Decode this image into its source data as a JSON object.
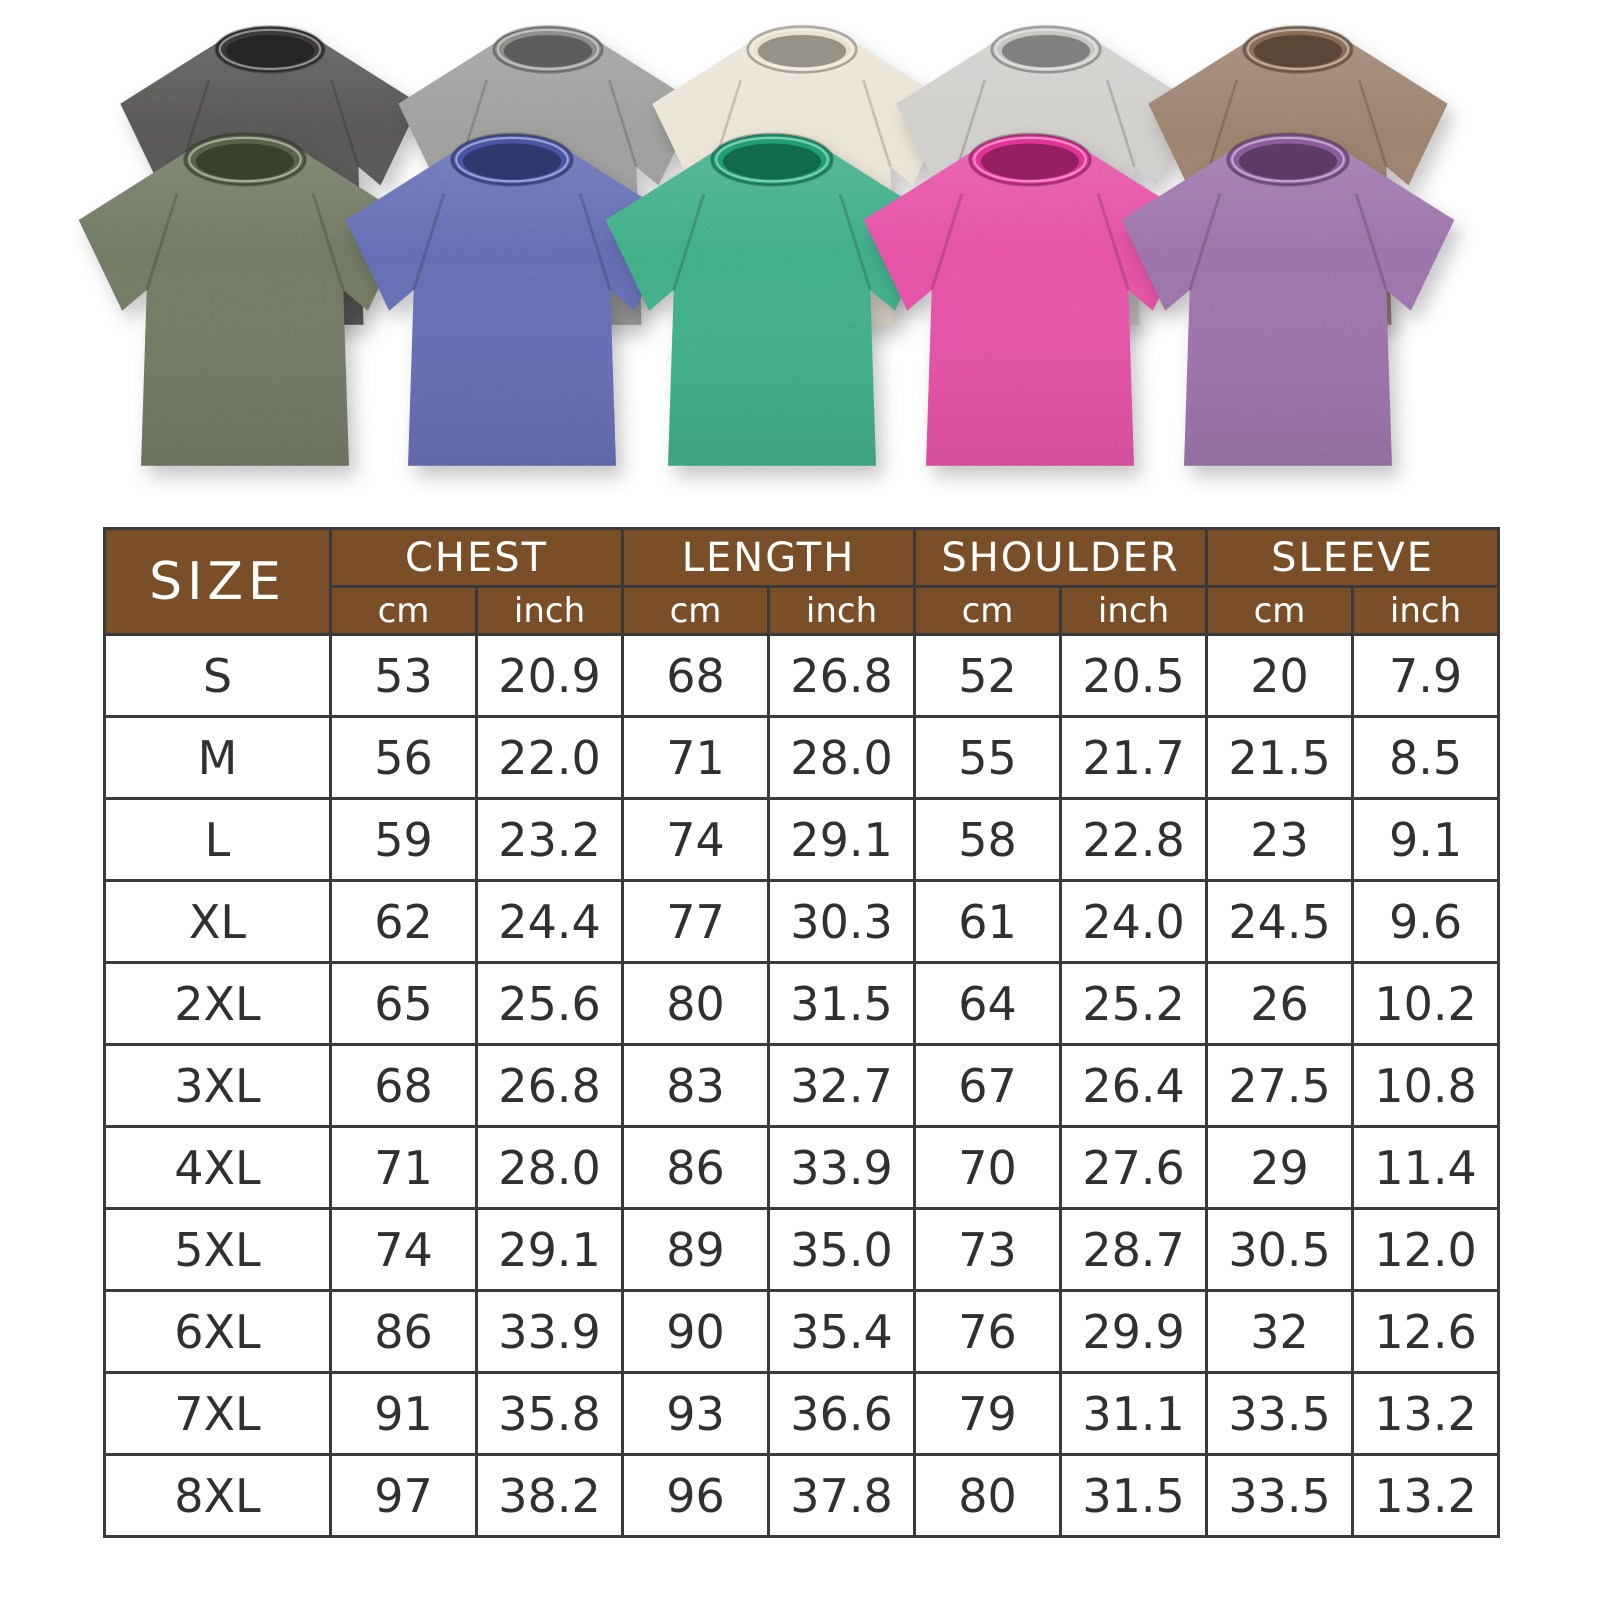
{
  "page": {
    "background": "#ffffff"
  },
  "gallery": {
    "back_row": [
      {
        "name": "washed-black",
        "hex": "#3b3a38"
      },
      {
        "name": "washed-gray",
        "hex": "#8f8f8d"
      },
      {
        "name": "washed-cream",
        "hex": "#e8e0d0"
      },
      {
        "name": "washed-light-gray",
        "hex": "#c8c7c3"
      },
      {
        "name": "washed-brown",
        "hex": "#8c6e57"
      }
    ],
    "front_row": [
      {
        "name": "washed-army-green",
        "hex": "#596349"
      },
      {
        "name": "washed-blue",
        "hex": "#4a55a8"
      },
      {
        "name": "washed-green",
        "hex": "#1ea175"
      },
      {
        "name": "washed-rose",
        "hex": "#e23397"
      },
      {
        "name": "washed-purple",
        "hex": "#8c5c9e"
      }
    ]
  },
  "size_chart": {
    "size_label": "SIZE",
    "groups": [
      "CHEST",
      "LENGTH",
      "SHOULDER",
      "SLEEVE"
    ],
    "units": [
      "cm",
      "inch"
    ],
    "header_bg": "#7a4e26",
    "header_text": "#ffffff"
  },
  "chart_data": {
    "type": "table",
    "columns": [
      "SIZE",
      "CHEST cm",
      "CHEST inch",
      "LENGTH cm",
      "LENGTH inch",
      "SHOULDER cm",
      "SHOULDER inch",
      "SLEEVE cm",
      "SLEEVE inch"
    ],
    "rows": [
      [
        "S",
        "53",
        "20.9",
        "68",
        "26.8",
        "52",
        "20.5",
        "20",
        "7.9"
      ],
      [
        "M",
        "56",
        "22.0",
        "71",
        "28.0",
        "55",
        "21.7",
        "21.5",
        "8.5"
      ],
      [
        "L",
        "59",
        "23.2",
        "74",
        "29.1",
        "58",
        "22.8",
        "23",
        "9.1"
      ],
      [
        "XL",
        "62",
        "24.4",
        "77",
        "30.3",
        "61",
        "24.0",
        "24.5",
        "9.6"
      ],
      [
        "2XL",
        "65",
        "25.6",
        "80",
        "31.5",
        "64",
        "25.2",
        "26",
        "10.2"
      ],
      [
        "3XL",
        "68",
        "26.8",
        "83",
        "32.7",
        "67",
        "26.4",
        "27.5",
        "10.8"
      ],
      [
        "4XL",
        "71",
        "28.0",
        "86",
        "33.9",
        "70",
        "27.6",
        "29",
        "11.4"
      ],
      [
        "5XL",
        "74",
        "29.1",
        "89",
        "35.0",
        "73",
        "28.7",
        "30.5",
        "12.0"
      ],
      [
        "6XL",
        "86",
        "33.9",
        "90",
        "35.4",
        "76",
        "29.9",
        "32",
        "12.6"
      ],
      [
        "7XL",
        "91",
        "35.8",
        "93",
        "36.6",
        "79",
        "31.1",
        "33.5",
        "13.2"
      ],
      [
        "8XL",
        "97",
        "38.2",
        "96",
        "37.8",
        "80",
        "31.5",
        "33.5",
        "13.2"
      ]
    ]
  }
}
